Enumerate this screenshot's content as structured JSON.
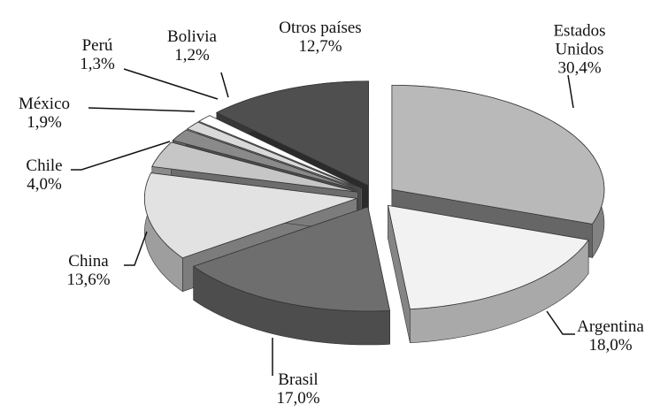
{
  "chart_data": {
    "type": "pie",
    "categories": [
      "Estados Unidos",
      "Argentina",
      "Brasil",
      "China",
      "Chile",
      "México",
      "Perú",
      "Bolivia",
      "Otros países"
    ],
    "values": [
      30.4,
      18.0,
      17.0,
      13.6,
      4.0,
      1.9,
      1.3,
      1.2,
      12.7
    ],
    "value_labels": [
      "30,4%",
      "18,0%",
      "17,0%",
      "13,6%",
      "4,0%",
      "1,9%",
      "1,3%",
      "1,2%",
      "12,7%"
    ],
    "colors": [
      "#b9b9b9",
      "#f2f2f2",
      "#6e6e6e",
      "#e2e2e2",
      "#c6c6c6",
      "#8a8a8a",
      "#d9d9d9",
      "#ffffff",
      "#4f4f4f"
    ]
  }
}
